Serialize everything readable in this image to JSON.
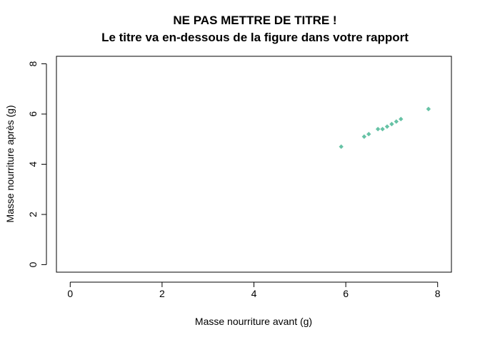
{
  "chart_data": {
    "type": "scatter",
    "title_lines": [
      "NE PAS METTRE DE TITRE !",
      "Le titre va en-dessous de la figure dans votre rapport"
    ],
    "xlabel": "Masse nourriture avant (g)",
    "ylabel": "Masse nourriture après (g)",
    "xlim": [
      -0.3,
      8.3
    ],
    "ylim": [
      -0.3,
      8.3
    ],
    "xticks": [
      "0",
      "2",
      "4",
      "6",
      "8"
    ],
    "yticks": [
      "0",
      "2",
      "4",
      "6",
      "8"
    ],
    "grid": false,
    "point_color": "#66c2a5",
    "x": [
      5.9,
      6.4,
      6.5,
      6.7,
      6.8,
      6.9,
      7.0,
      7.1,
      7.2,
      7.8
    ],
    "y": [
      4.7,
      5.1,
      5.2,
      5.4,
      5.4,
      5.5,
      5.6,
      5.7,
      5.8,
      6.2
    ]
  }
}
